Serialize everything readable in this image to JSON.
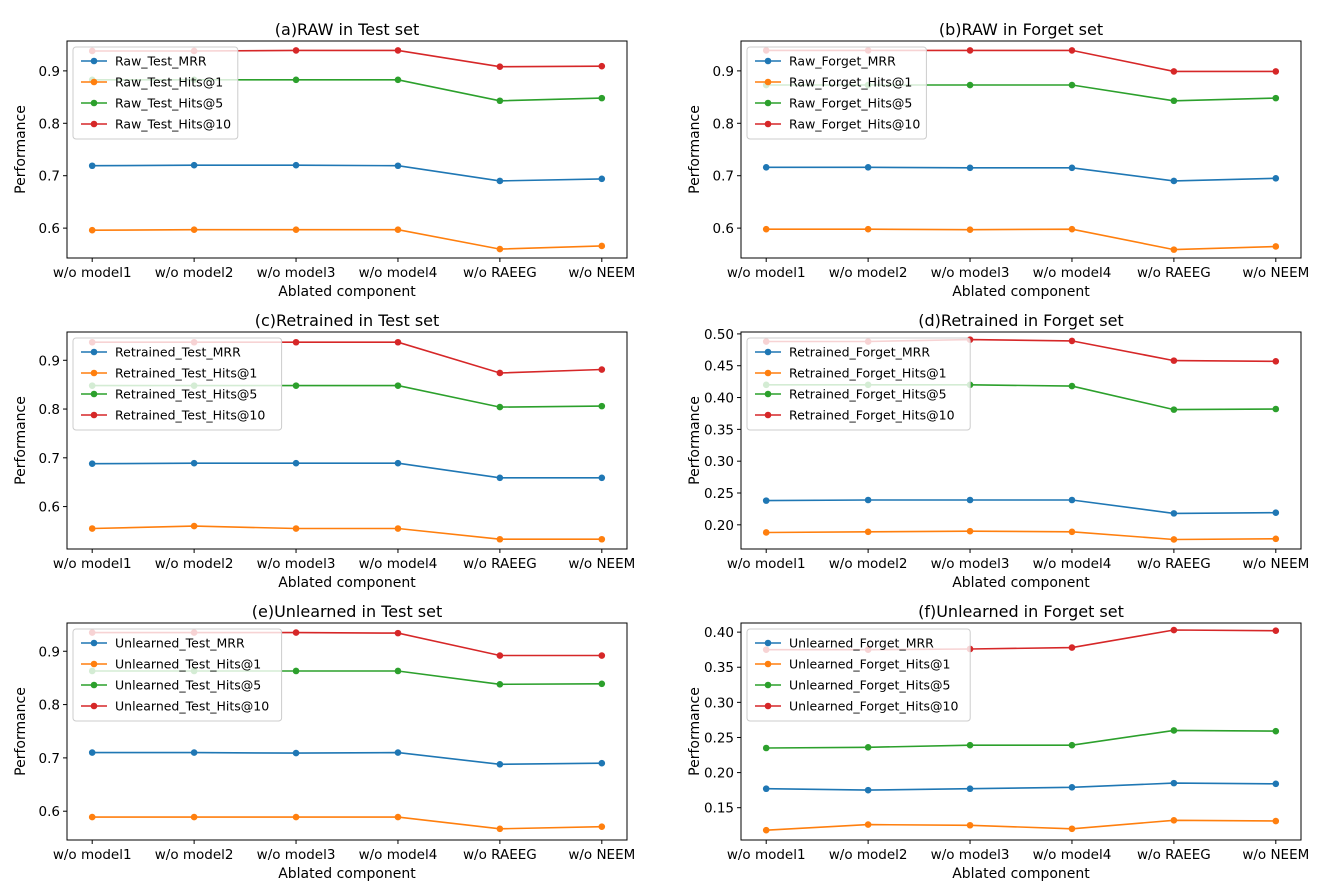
{
  "chart_data": [
    {
      "type": "line",
      "title": "(a)RAW in Test set",
      "xlabel": "Ablated component",
      "ylabel": "Performance",
      "categories": [
        "w/o model1",
        "w/o model2",
        "w/o model3",
        "w/o model4",
        "w/o RAEEG",
        "w/o NEEM"
      ],
      "ylim": [
        0.543,
        0.957
      ],
      "yticks": [
        0.6,
        0.7,
        0.8,
        0.9
      ],
      "ytick_labels": [
        "0.6",
        "0.7",
        "0.8",
        "0.9"
      ],
      "legend_loc": "upper-left",
      "series": [
        {
          "name": "Raw_Test_MRR",
          "values": [
            0.719,
            0.72,
            0.72,
            0.719,
            0.69,
            0.694
          ]
        },
        {
          "name": "Raw_Test_Hits@1",
          "values": [
            0.596,
            0.597,
            0.597,
            0.597,
            0.56,
            0.566
          ]
        },
        {
          "name": "Raw_Test_Hits@5",
          "values": [
            0.883,
            0.883,
            0.883,
            0.883,
            0.843,
            0.848
          ]
        },
        {
          "name": "Raw_Test_Hits@10",
          "values": [
            0.938,
            0.938,
            0.939,
            0.939,
            0.908,
            0.909
          ]
        }
      ]
    },
    {
      "type": "line",
      "title": "(b)RAW in Forget set",
      "xlabel": "Ablated component",
      "ylabel": "Performance",
      "categories": [
        "w/o model1",
        "w/o model2",
        "w/o model3",
        "w/o model4",
        "w/o RAEEG",
        "w/o NEEM"
      ],
      "ylim": [
        0.543,
        0.957
      ],
      "yticks": [
        0.6,
        0.7,
        0.8,
        0.9
      ],
      "ytick_labels": [
        "0.6",
        "0.7",
        "0.8",
        "0.9"
      ],
      "legend_loc": "upper-left",
      "series": [
        {
          "name": "Raw_Forget_MRR",
          "values": [
            0.716,
            0.716,
            0.715,
            0.715,
            0.69,
            0.695
          ]
        },
        {
          "name": "Raw_Forget_Hits@1",
          "values": [
            0.598,
            0.598,
            0.597,
            0.598,
            0.559,
            0.565
          ]
        },
        {
          "name": "Raw_Forget_Hits@5",
          "values": [
            0.873,
            0.873,
            0.873,
            0.873,
            0.843,
            0.848
          ]
        },
        {
          "name": "Raw_Forget_Hits@10",
          "values": [
            0.939,
            0.939,
            0.939,
            0.939,
            0.899,
            0.899
          ]
        }
      ]
    },
    {
      "type": "line",
      "title": "(c)Retrained in Test set",
      "xlabel": "Ablated component",
      "ylabel": "Performance",
      "categories": [
        "w/o model1",
        "w/o model2",
        "w/o model3",
        "w/o model4",
        "w/o RAEEG",
        "w/o NEEM"
      ],
      "ylim": [
        0.513,
        0.958
      ],
      "yticks": [
        0.6,
        0.7,
        0.8,
        0.9
      ],
      "ytick_labels": [
        "0.6",
        "0.7",
        "0.8",
        "0.9"
      ],
      "legend_loc": "upper-left",
      "series": [
        {
          "name": "Retrained_Test_MRR",
          "values": [
            0.688,
            0.689,
            0.689,
            0.689,
            0.659,
            0.659
          ]
        },
        {
          "name": "Retrained_Test_Hits@1",
          "values": [
            0.555,
            0.56,
            0.555,
            0.555,
            0.533,
            0.533
          ]
        },
        {
          "name": "Retrained_Test_Hits@5",
          "values": [
            0.848,
            0.848,
            0.848,
            0.848,
            0.804,
            0.806
          ]
        },
        {
          "name": "Retrained_Test_Hits@10",
          "values": [
            0.937,
            0.937,
            0.937,
            0.937,
            0.874,
            0.881
          ]
        }
      ]
    },
    {
      "type": "line",
      "title": "(d)Retrained in Forget set",
      "xlabel": "Ablated component",
      "ylabel": "Performance",
      "categories": [
        "w/o model1",
        "w/o model2",
        "w/o model3",
        "w/o model4",
        "w/o RAEEG",
        "w/o NEEM"
      ],
      "ylim": [
        0.162,
        0.503
      ],
      "yticks": [
        0.2,
        0.25,
        0.3,
        0.35,
        0.4,
        0.45,
        0.5
      ],
      "ytick_labels": [
        "0.20",
        "0.25",
        "0.30",
        "0.35",
        "0.40",
        "0.45",
        "0.50"
      ],
      "legend_loc": "upper-left",
      "series": [
        {
          "name": "Retrained_Forget_MRR",
          "values": [
            0.238,
            0.239,
            0.239,
            0.239,
            0.218,
            0.219
          ]
        },
        {
          "name": "Retrained_Forget_Hits@1",
          "values": [
            0.188,
            0.189,
            0.19,
            0.189,
            0.177,
            0.178
          ]
        },
        {
          "name": "Retrained_Forget_Hits@5",
          "values": [
            0.42,
            0.42,
            0.42,
            0.418,
            0.381,
            0.382
          ]
        },
        {
          "name": "Retrained_Forget_Hits@10",
          "values": [
            0.488,
            0.488,
            0.491,
            0.489,
            0.458,
            0.457
          ]
        }
      ]
    },
    {
      "type": "line",
      "title": "(e)Unlearned in Test set",
      "xlabel": "Ablated component",
      "ylabel": "Performance",
      "categories": [
        "w/o model1",
        "w/o model2",
        "w/o model3",
        "w/o model4",
        "w/o RAEEG",
        "w/o NEEM"
      ],
      "ylim": [
        0.546,
        0.953
      ],
      "yticks": [
        0.6,
        0.7,
        0.8,
        0.9
      ],
      "ytick_labels": [
        "0.6",
        "0.7",
        "0.8",
        "0.9"
      ],
      "legend_loc": "upper-left",
      "series": [
        {
          "name": "Unlearned_Test_MRR",
          "values": [
            0.71,
            0.71,
            0.709,
            0.71,
            0.688,
            0.69
          ]
        },
        {
          "name": "Unlearned_Test_Hits@1",
          "values": [
            0.589,
            0.589,
            0.589,
            0.589,
            0.567,
            0.571
          ]
        },
        {
          "name": "Unlearned_Test_Hits@5",
          "values": [
            0.863,
            0.863,
            0.863,
            0.863,
            0.838,
            0.839
          ]
        },
        {
          "name": "Unlearned_Test_Hits@10",
          "values": [
            0.935,
            0.935,
            0.935,
            0.934,
            0.892,
            0.892
          ]
        }
      ]
    },
    {
      "type": "line",
      "title": "(f)Unlearned in Forget set",
      "xlabel": "Ablated component",
      "ylabel": "Performance",
      "categories": [
        "w/o model1",
        "w/o model2",
        "w/o model3",
        "w/o model4",
        "w/o RAEEG",
        "w/o NEEM"
      ],
      "ylim": [
        0.104,
        0.413
      ],
      "yticks": [
        0.15,
        0.2,
        0.25,
        0.3,
        0.35,
        0.4
      ],
      "ytick_labels": [
        "0.15",
        "0.20",
        "0.25",
        "0.30",
        "0.35",
        "0.40"
      ],
      "legend_loc": "upper-left",
      "series": [
        {
          "name": "Unlearned_Forget_MRR",
          "values": [
            0.177,
            0.175,
            0.177,
            0.179,
            0.185,
            0.184
          ]
        },
        {
          "name": "Unlearned_Forget_Hits@1",
          "values": [
            0.118,
            0.126,
            0.125,
            0.12,
            0.132,
            0.131
          ]
        },
        {
          "name": "Unlearned_Forget_Hits@5",
          "values": [
            0.235,
            0.236,
            0.239,
            0.239,
            0.26,
            0.259
          ]
        },
        {
          "name": "Unlearned_Forget_Hits@10",
          "values": [
            0.375,
            0.375,
            0.376,
            0.378,
            0.403,
            0.402
          ]
        }
      ]
    }
  ],
  "colors": [
    "#1f77b4",
    "#ff7f0e",
    "#2ca02c",
    "#d62728"
  ]
}
